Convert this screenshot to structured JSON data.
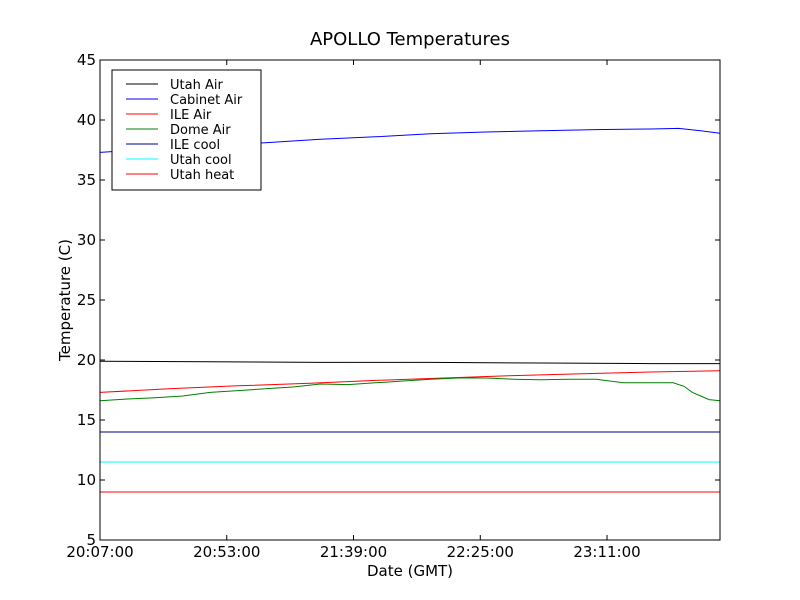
{
  "chart_data": {
    "type": "line",
    "title": "APOLLO Temperatures",
    "xlabel": "Date (GMT)",
    "ylabel": "Temperature (C)",
    "xlim": [
      0,
      225
    ],
    "ylim": [
      5,
      45
    ],
    "x_tick_values": [
      0,
      46,
      92,
      138,
      184
    ],
    "x_tick_labels": [
      "20:07:00",
      "20:53:00",
      "21:39:00",
      "22:25:00",
      "23:11:00"
    ],
    "y_ticks": [
      5,
      10,
      15,
      20,
      25,
      30,
      35,
      40,
      45
    ],
    "legend_position": "top-left",
    "grid": false,
    "series": [
      {
        "name": "Utah Air",
        "color": "#000000",
        "x": [
          0,
          40,
          80,
          120,
          160,
          200,
          225
        ],
        "y": [
          19.9,
          19.85,
          19.8,
          19.8,
          19.75,
          19.7,
          19.7
        ]
      },
      {
        "name": "Cabinet Air",
        "color": "#0000ff",
        "x": [
          0,
          20,
          40,
          60,
          80,
          100,
          120,
          140,
          160,
          180,
          200,
          210,
          218,
          225
        ],
        "y": [
          37.3,
          37.6,
          37.9,
          38.1,
          38.4,
          38.6,
          38.85,
          39.0,
          39.1,
          39.2,
          39.25,
          39.3,
          39.1,
          38.9
        ]
      },
      {
        "name": "ILE Air",
        "color": "#ff0000",
        "x": [
          0,
          25,
          50,
          75,
          100,
          125,
          150,
          175,
          200,
          225
        ],
        "y": [
          17.3,
          17.6,
          17.85,
          18.05,
          18.3,
          18.5,
          18.7,
          18.85,
          19.0,
          19.1
        ]
      },
      {
        "name": "Dome Air",
        "color": "#008000",
        "x": [
          0,
          10,
          20,
          30,
          40,
          50,
          60,
          70,
          80,
          90,
          100,
          110,
          120,
          130,
          140,
          150,
          160,
          170,
          180,
          190,
          200,
          208,
          212,
          215,
          218,
          221,
          225
        ],
        "y": [
          16.6,
          16.75,
          16.85,
          17.0,
          17.3,
          17.45,
          17.6,
          17.75,
          18.0,
          17.95,
          18.1,
          18.25,
          18.4,
          18.5,
          18.5,
          18.4,
          18.35,
          18.4,
          18.4,
          18.1,
          18.1,
          18.1,
          17.8,
          17.3,
          17.0,
          16.7,
          16.6
        ]
      },
      {
        "name": "ILE cool",
        "color": "#000080",
        "x": [
          0,
          225
        ],
        "y": [
          14.0,
          14.0
        ]
      },
      {
        "name": "Utah cool",
        "color": "#00ffff",
        "x": [
          0,
          225
        ],
        "y": [
          11.5,
          11.5
        ]
      },
      {
        "name": "Utah heat",
        "color": "#ff0000",
        "x": [
          0,
          225
        ],
        "y": [
          9.0,
          9.0
        ]
      }
    ]
  }
}
